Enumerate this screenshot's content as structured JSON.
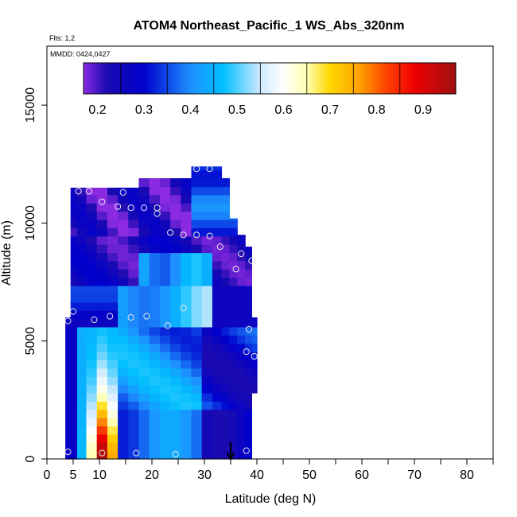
{
  "chart_data": {
    "type": "heatmap",
    "title": "ATOM4 Northeast_Pacific_1 WS_Abs_320nm",
    "flights_label": "Flts: 1,2",
    "dates_label": "MMDD: 0424,0427",
    "xlabel": "Latitude (deg N)",
    "ylabel": "Altitude (m)",
    "xlim": [
      0,
      85
    ],
    "ylim": [
      0,
      17500
    ],
    "x_ticks": [
      0,
      5,
      10,
      20,
      30,
      40,
      50,
      60,
      70,
      80
    ],
    "x_minor_ticks": [
      15,
      25,
      35,
      45,
      55,
      65,
      75,
      85
    ],
    "y_ticks": [
      0,
      5000,
      10000,
      15000
    ],
    "colorbar": {
      "min": 0.17,
      "max": 0.97,
      "ticks": [
        0.2,
        0.3,
        0.4,
        0.5,
        0.6,
        0.7,
        0.8,
        0.9
      ],
      "stops": [
        {
          "v": 0.17,
          "c": "#8a2be2"
        },
        {
          "v": 0.22,
          "c": "#1a0ab0"
        },
        {
          "v": 0.3,
          "c": "#0000cd"
        },
        {
          "v": 0.4,
          "c": "#1e90ff"
        },
        {
          "v": 0.47,
          "c": "#00bfff"
        },
        {
          "v": 0.55,
          "c": "#cfeaff"
        },
        {
          "v": 0.6,
          "c": "#ffffff"
        },
        {
          "v": 0.65,
          "c": "#ffffb0"
        },
        {
          "v": 0.7,
          "c": "#ffd700"
        },
        {
          "v": 0.76,
          "c": "#ffa500"
        },
        {
          "v": 0.82,
          "c": "#ff4500"
        },
        {
          "v": 0.88,
          "c": "#ee0000"
        },
        {
          "v": 0.97,
          "c": "#a01010"
        }
      ]
    },
    "columns": [
      {
        "lat": 4.0,
        "ymin": 0,
        "ymax": 6000
      },
      {
        "lat": 5.0,
        "ymin": 0,
        "ymax": 11500
      },
      {
        "lat": 6.5,
        "ymin": 0,
        "ymax": 11500
      },
      {
        "lat": 8.5,
        "ymin": 0,
        "ymax": 11500
      },
      {
        "lat": 10.5,
        "ymin": 0,
        "ymax": 11500
      },
      {
        "lat": 12.5,
        "ymin": 0,
        "ymax": 11500
      },
      {
        "lat": 14.5,
        "ymin": 0,
        "ymax": 11500
      },
      {
        "lat": 16.5,
        "ymin": 0,
        "ymax": 11500
      },
      {
        "lat": 18.5,
        "ymin": 0,
        "ymax": 11900
      },
      {
        "lat": 20.5,
        "ymin": 0,
        "ymax": 11900
      },
      {
        "lat": 22.5,
        "ymin": 0,
        "ymax": 11900
      },
      {
        "lat": 24.5,
        "ymin": 0,
        "ymax": 11900
      },
      {
        "lat": 26.5,
        "ymin": 0,
        "ymax": 11900
      },
      {
        "lat": 28.5,
        "ymin": 0,
        "ymax": 12400
      },
      {
        "lat": 30.5,
        "ymin": 0,
        "ymax": 12400
      },
      {
        "lat": 32.5,
        "ymin": 0,
        "ymax": 12400
      },
      {
        "lat": 34.0,
        "ymin": 0,
        "ymax": 11900
      },
      {
        "lat": 35.5,
        "ymin": 0,
        "ymax": 10200
      },
      {
        "lat": 37.0,
        "ymin": 0,
        "ymax": 9500
      },
      {
        "lat": 38.5,
        "ymin": 0,
        "ymax": 9000
      },
      {
        "lat": 39.5,
        "ymin": 2800,
        "ymax": 6000
      }
    ],
    "samples": [
      {
        "lat": 4,
        "alt": 300
      },
      {
        "lat": 10.5,
        "alt": 250
      },
      {
        "lat": 17,
        "alt": 250
      },
      {
        "lat": 24.5,
        "alt": 200
      },
      {
        "lat": 38,
        "alt": 350
      },
      {
        "lat": 4,
        "alt": 5850
      },
      {
        "lat": 5,
        "alt": 6250
      },
      {
        "lat": 9,
        "alt": 5900
      },
      {
        "lat": 12,
        "alt": 6050
      },
      {
        "lat": 16,
        "alt": 6000
      },
      {
        "lat": 19,
        "alt": 6050
      },
      {
        "lat": 23,
        "alt": 5650
      },
      {
        "lat": 26,
        "alt": 6400
      },
      {
        "lat": 38,
        "alt": 4550
      },
      {
        "lat": 38.5,
        "alt": 5500
      },
      {
        "lat": 39.5,
        "alt": 4350
      },
      {
        "lat": 6,
        "alt": 11350
      },
      {
        "lat": 8,
        "alt": 11350
      },
      {
        "lat": 14.5,
        "alt": 11300
      },
      {
        "lat": 10.5,
        "alt": 10900
      },
      {
        "lat": 13.5,
        "alt": 10700
      },
      {
        "lat": 16,
        "alt": 10650
      },
      {
        "lat": 18.5,
        "alt": 10650
      },
      {
        "lat": 21,
        "alt": 10650
      },
      {
        "lat": 21,
        "alt": 10400
      },
      {
        "lat": 23.5,
        "alt": 9600
      },
      {
        "lat": 26,
        "alt": 9500
      },
      {
        "lat": 28.5,
        "alt": 9500
      },
      {
        "lat": 31,
        "alt": 9450
      },
      {
        "lat": 33,
        "alt": 9000
      },
      {
        "lat": 37,
        "alt": 8700
      },
      {
        "lat": 36,
        "alt": 8050
      },
      {
        "lat": 39,
        "alt": 8400
      },
      {
        "lat": 28.5,
        "alt": 12300
      },
      {
        "lat": 31,
        "alt": 12300
      }
    ],
    "arrow_lat": 35,
    "grid": false,
    "legend": "colorbar top"
  }
}
